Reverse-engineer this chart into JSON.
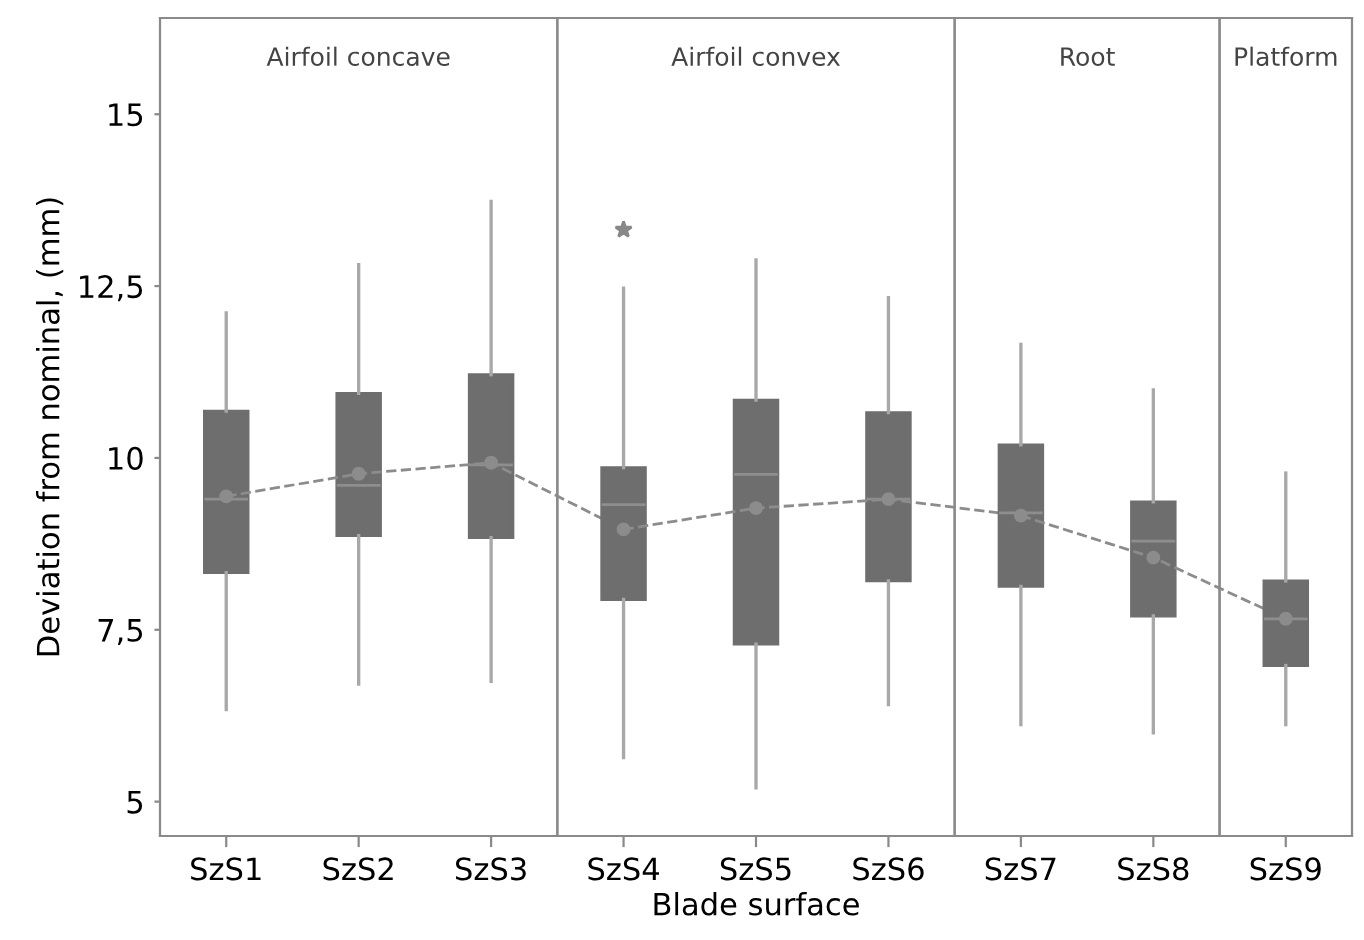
{
  "chart_data": [
    {
      "type": "box",
      "title": "Airfoil concave",
      "ylabel": "Deviation from nominal, (mm)",
      "categories": [
        "SzS1",
        "SzS2",
        "SzS3"
      ],
      "ylim": [
        4.5,
        16.4
      ],
      "yticks": [
        5,
        {
          "value": 7.5,
          "label": "7,5"
        },
        10,
        {
          "value": 12.5,
          "label": "12,5"
        },
        15
      ],
      "grid": false,
      "series": [
        {
          "color": "#6e6e6e",
          "boxes": [
            {
              "low": 6.34,
              "q1": 8.33,
              "median": 9.4,
              "q3": 10.68,
              "high": 12.11
            },
            {
              "low": 6.71,
              "q1": 8.87,
              "median": 9.6,
              "q3": 10.94,
              "high": 12.81
            },
            {
              "low": 6.75,
              "q1": 8.84,
              "median": 9.9,
              "q3": 11.21,
              "high": 13.73
            }
          ]
        },
        {
          "type": "line",
          "color": "#8c8c8c",
          "line_style": "dashed",
          "marker": "circle",
          "values": [
            9.44,
            9.77,
            9.93
          ]
        }
      ]
    },
    {
      "type": "box",
      "title": "Airfoil convex",
      "xlabel": "Blade surface",
      "categories": [
        "SzS4",
        "SzS5",
        "SzS6"
      ],
      "ylim": [
        4.5,
        16.4
      ],
      "tick_labels": "x",
      "grid": false,
      "series": [
        {
          "color": "#6e6e6e",
          "boxes": [
            {
              "low": 5.64,
              "q1": 7.94,
              "median": 9.32,
              "q3": 9.86,
              "high": 12.47,
              "outliers": [
                13.32
              ]
            },
            {
              "low": 5.2,
              "q1": 7.29,
              "median": 9.76,
              "q3": 10.84,
              "high": 12.88
            },
            {
              "low": 6.41,
              "q1": 8.21,
              "median": 9.4,
              "q3": 10.66,
              "high": 12.33
            }
          ]
        },
        {
          "type": "line",
          "color": "#8c8c8c",
          "line_style": "dashed",
          "marker": "circle",
          "values": [
            8.96,
            9.27,
            9.4
          ]
        }
      ]
    },
    {
      "type": "box",
      "title": "Root",
      "categories": [
        "SzS7",
        "SzS8"
      ],
      "ylim": [
        4.5,
        16.4
      ],
      "tick_labels": "x",
      "grid": false,
      "series": [
        {
          "color": "#6e6e6e",
          "boxes": [
            {
              "low": 6.12,
              "q1": 8.13,
              "median": 9.2,
              "q3": 10.19,
              "high": 11.65
            },
            {
              "low": 6.0,
              "q1": 7.7,
              "median": 8.79,
              "q3": 9.36,
              "high": 10.99
            }
          ]
        },
        {
          "type": "line",
          "color": "#8c8c8c",
          "line_style": "dashed",
          "marker": "circle",
          "values": [
            9.16,
            8.55
          ]
        }
      ]
    },
    {
      "type": "box",
      "title": "Platform",
      "categories": [
        "SzS9"
      ],
      "ylim": [
        4.5,
        16.4
      ],
      "tick_labels": "x",
      "grid": false,
      "series": [
        {
          "color": "#6e6e6e",
          "boxes": [
            {
              "low": 6.12,
              "q1": 6.98,
              "median": 7.66,
              "q3": 8.21,
              "high": 9.78
            }
          ]
        },
        {
          "type": "line",
          "color": "#8c8c8c",
          "line_style": "dashed",
          "marker": "circle",
          "values": [
            7.66
          ]
        }
      ]
    }
  ]
}
